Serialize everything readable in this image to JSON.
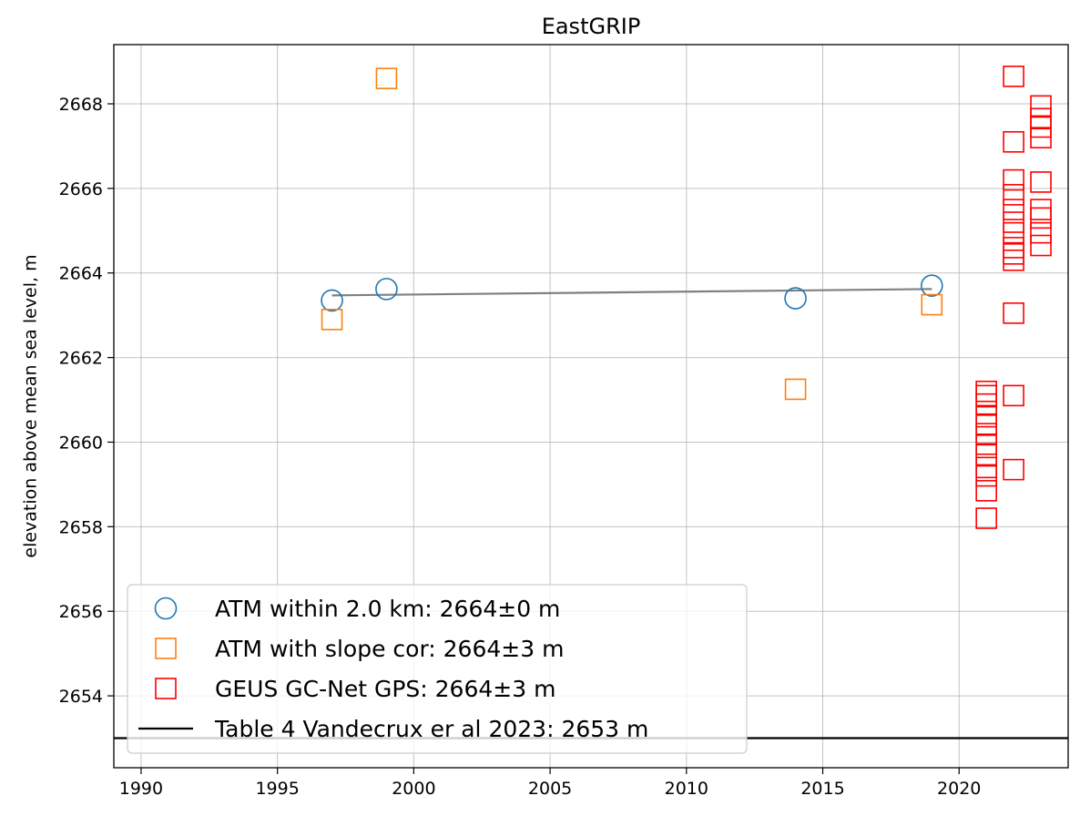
{
  "chart_data": {
    "type": "scatter",
    "title": "EastGRIP",
    "xlabel": "",
    "ylabel": "elevation above mean sea level, m",
    "xlim": [
      1989,
      2024
    ],
    "ylim": [
      2652.3,
      2669.4
    ],
    "xticks": [
      1990,
      1995,
      2000,
      2005,
      2010,
      2015,
      2020
    ],
    "yticks": [
      2654,
      2656,
      2658,
      2660,
      2662,
      2664,
      2666,
      2668
    ],
    "grid": true,
    "legend_position": "lower-left",
    "series": [
      {
        "name": "ATM within 2.0 km: 2664±0 m",
        "marker": "circle",
        "color": "#1f77b4",
        "points": [
          [
            1997,
            2663.35
          ],
          [
            1999,
            2663.62
          ],
          [
            2014,
            2663.4
          ],
          [
            2019,
            2663.7
          ]
        ]
      },
      {
        "name": "ATM with slope cor: 2664±3 m",
        "marker": "square",
        "color": "#ff7f0e",
        "points": [
          [
            1997,
            2662.9
          ],
          [
            1999,
            2668.6
          ],
          [
            2014,
            2661.25
          ],
          [
            2019,
            2663.25
          ]
        ]
      },
      {
        "name": "GEUS GC-Net GPS: 2664±3 m",
        "marker": "square",
        "color": "#ff0000",
        "points": [
          [
            2021,
            2661.2
          ],
          [
            2021,
            2661.1
          ],
          [
            2021,
            2660.9
          ],
          [
            2021,
            2660.6
          ],
          [
            2021,
            2660.4
          ],
          [
            2021,
            2660.2
          ],
          [
            2021,
            2659.95
          ],
          [
            2021,
            2659.7
          ],
          [
            2021,
            2659.4
          ],
          [
            2021,
            2659.2
          ],
          [
            2021,
            2658.85
          ],
          [
            2021,
            2658.2
          ],
          [
            2022,
            2668.65
          ],
          [
            2022,
            2667.1
          ],
          [
            2022,
            2666.2
          ],
          [
            2022,
            2665.85
          ],
          [
            2022,
            2665.5
          ],
          [
            2022,
            2665.2
          ],
          [
            2022,
            2664.95
          ],
          [
            2022,
            2664.6
          ],
          [
            2022,
            2664.45
          ],
          [
            2022,
            2664.3
          ],
          [
            2022,
            2663.05
          ],
          [
            2022,
            2661.1
          ],
          [
            2022,
            2659.35
          ],
          [
            2023,
            2667.95
          ],
          [
            2023,
            2667.65
          ],
          [
            2023,
            2667.45
          ],
          [
            2023,
            2667.2
          ],
          [
            2023,
            2666.15
          ],
          [
            2023,
            2665.5
          ],
          [
            2023,
            2665.3
          ],
          [
            2023,
            2664.95
          ],
          [
            2023,
            2664.65
          ]
        ]
      }
    ],
    "trend_line": {
      "color": "#808080",
      "points": [
        [
          1997,
          2663.47
        ],
        [
          2019,
          2663.62
        ]
      ]
    },
    "reference_line": {
      "name": "Table 4 Vandecrux er al 2023: 2653 m",
      "color": "#000000",
      "y": 2653.0
    }
  }
}
